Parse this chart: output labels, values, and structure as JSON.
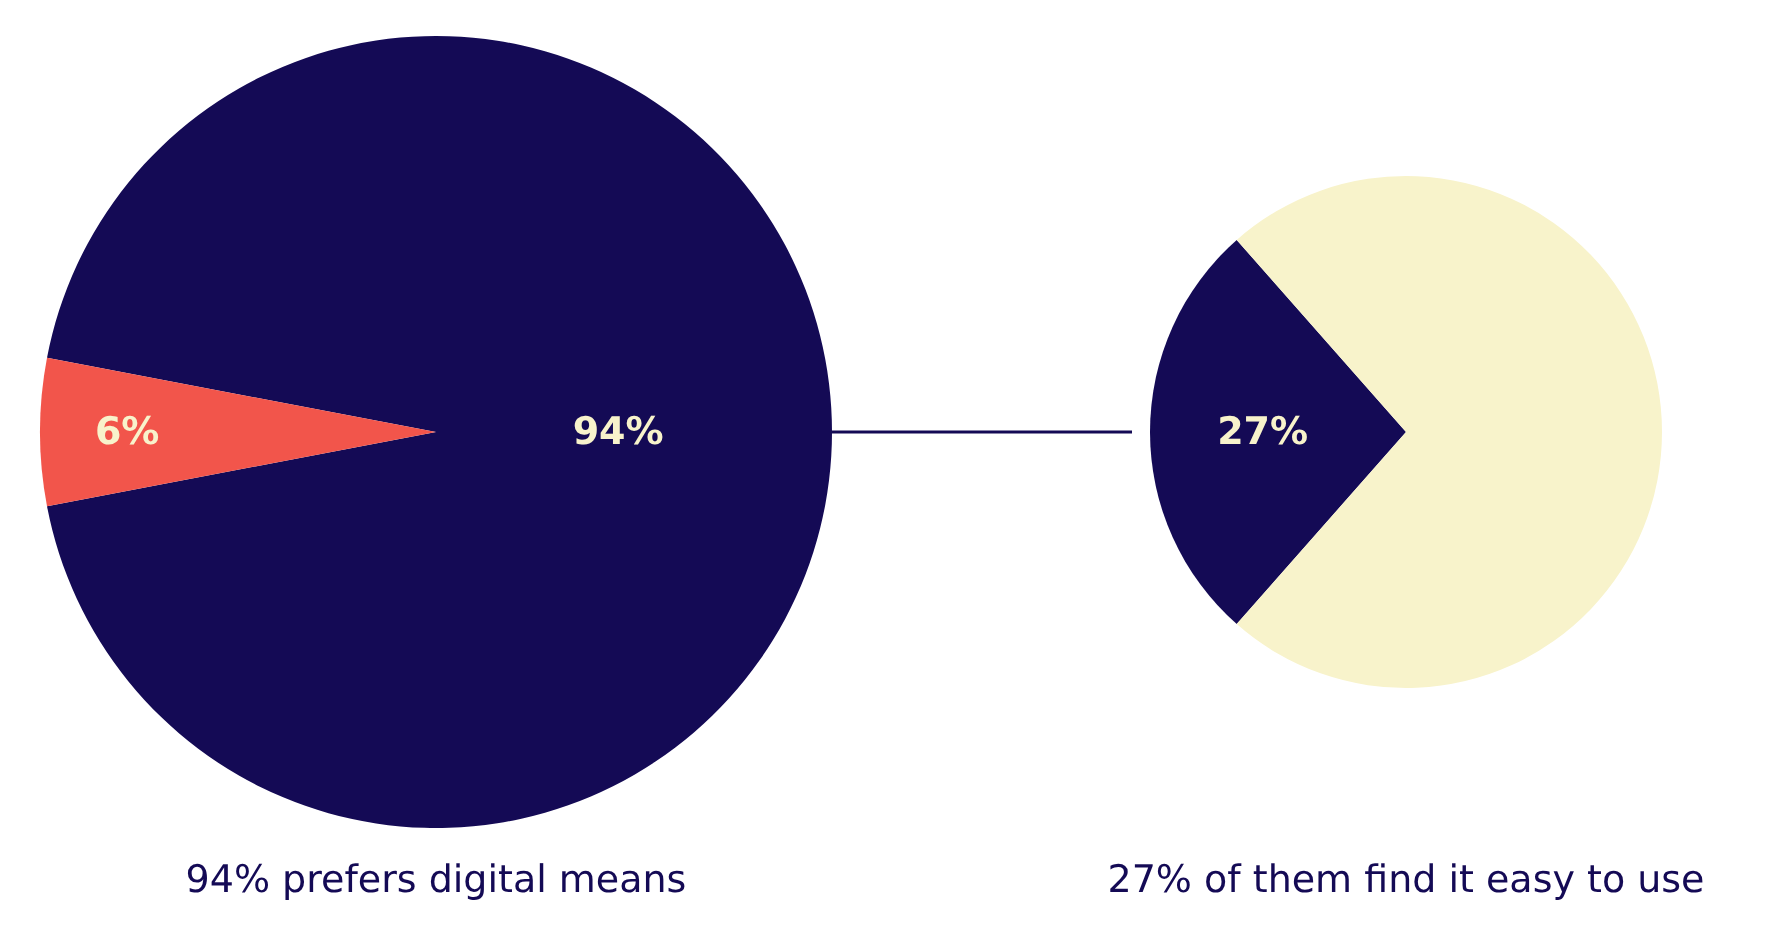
{
  "chart_data": [
    {
      "type": "pie",
      "categories": [
        null,
        null
      ],
      "values": [
        94,
        6
      ],
      "colors": [
        "#140a55",
        "#f2554b"
      ],
      "value_labels": [
        "94%",
        "6%"
      ],
      "annotations": [
        "94% prefers digital means"
      ]
    },
    {
      "type": "pie",
      "categories": [
        null,
        null
      ],
      "values": [
        27,
        73
      ],
      "colors": [
        "#140a55",
        "#f8f3cb"
      ],
      "value_labels": [
        "27%",
        null
      ],
      "annotations": [
        "27% of them find it easy to use"
      ]
    }
  ]
}
